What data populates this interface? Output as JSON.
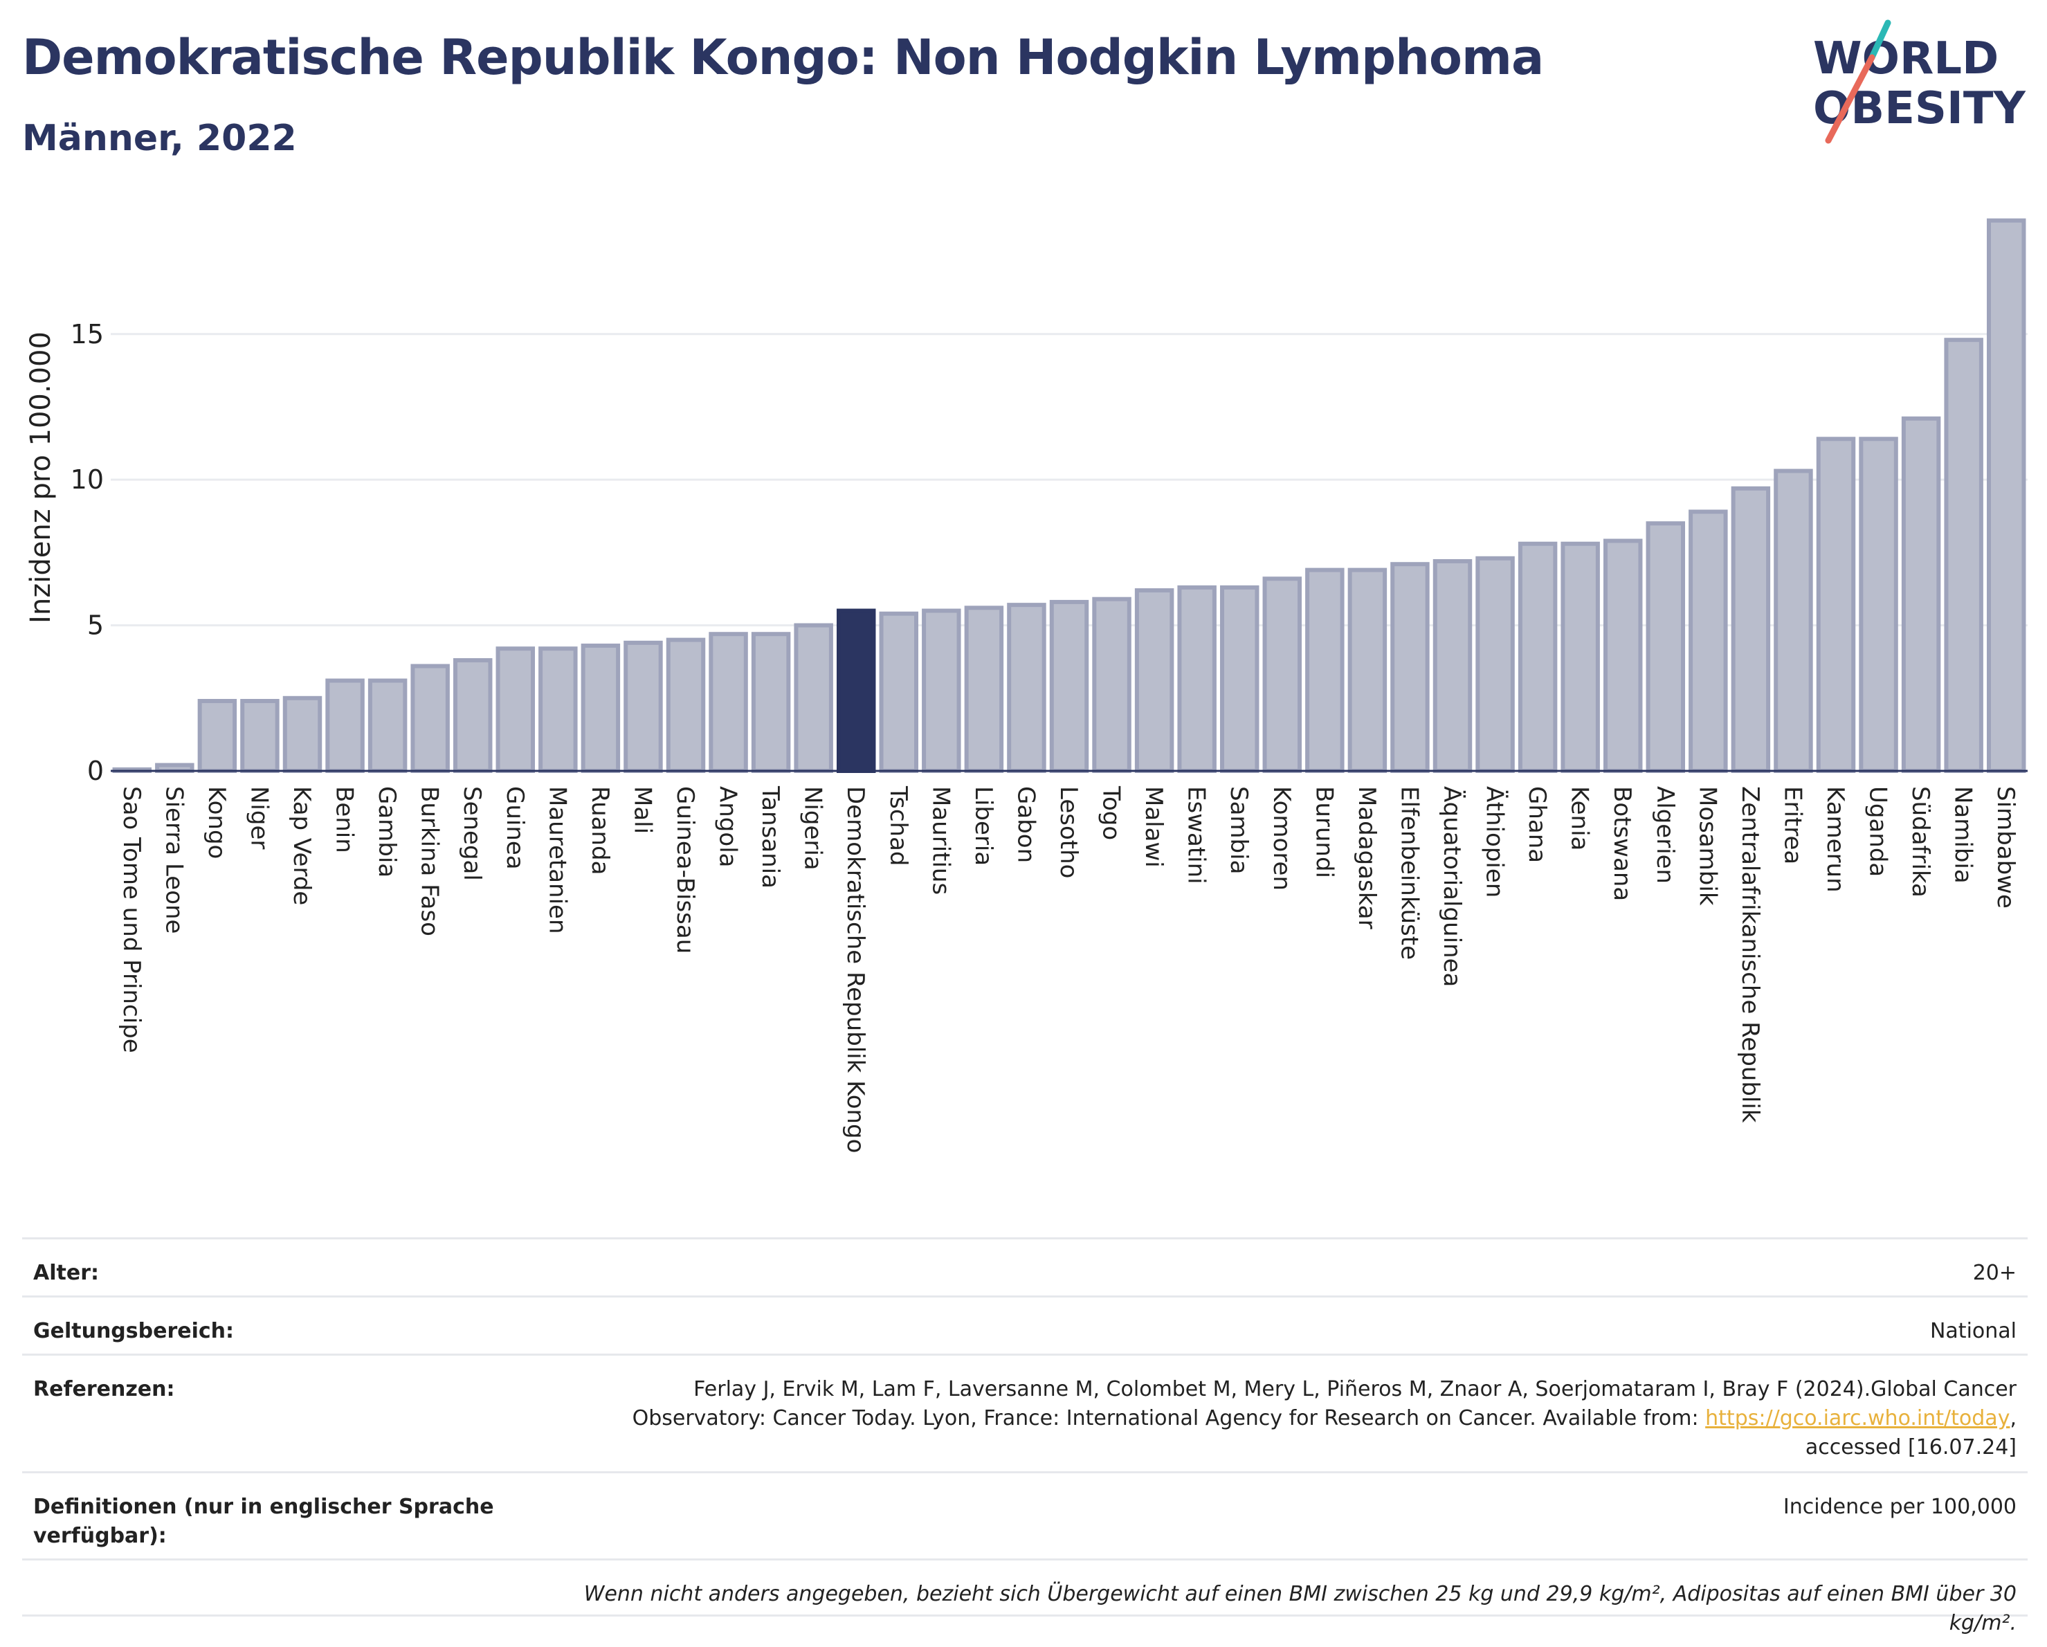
{
  "header": {
    "title": "Demokratische Republik Kongo: Non Hodgkin Lymphoma",
    "subtitle": "Männer, 2022"
  },
  "logo": {
    "line1": "WORLD",
    "line2": "OBESITY",
    "accent_teal": "#2bb8b5",
    "accent_red": "#e8695a"
  },
  "colors": {
    "bar_fill": "#b9bdcc",
    "bar_stroke": "#9ea3bb",
    "highlight": "#2b3561",
    "grid": "#e9ebef",
    "text": "#2b3561"
  },
  "chart_data": {
    "type": "bar",
    "title": "Demokratische Republik Kongo: Non Hodgkin Lymphoma",
    "subtitle": "Männer, 2022",
    "xlabel": "",
    "ylabel": "Inzidenz pro 100.000",
    "ylim": [
      0,
      19.2
    ],
    "yticks": [
      0,
      5,
      10,
      15
    ],
    "grid": true,
    "highlight": "Demokratische Republik Kongo",
    "categories": [
      "Sao Tome und Principe",
      "Sierra Leone",
      "Kongo",
      "Niger",
      "Kap Verde",
      "Benin",
      "Gambia",
      "Burkina Faso",
      "Senegal",
      "Guinea",
      "Mauretanien",
      "Ruanda",
      "Mali",
      "Guinea-Bissau",
      "Angola",
      "Tansania",
      "Nigeria",
      "Demokratische Republik Kongo",
      "Tschad",
      "Mauritius",
      "Liberia",
      "Gabon",
      "Lesotho",
      "Togo",
      "Malawi",
      "Eswatini",
      "Sambia",
      "Komoren",
      "Burundi",
      "Madagaskar",
      "Elfenbeinküste",
      "Äquatorialguinea",
      "Äthiopien",
      "Ghana",
      "Kenia",
      "Botswana",
      "Algerien",
      "Mosambik",
      "Zentralafrikanische Republik",
      "Eritrea",
      "Kamerun",
      "Uganda",
      "Südafrika",
      "Namibia",
      "Simbabwe"
    ],
    "values": [
      0.05,
      0.2,
      2.4,
      2.4,
      2.5,
      3.1,
      3.1,
      3.6,
      3.8,
      4.2,
      4.2,
      4.3,
      4.4,
      4.5,
      4.7,
      4.7,
      5.0,
      5.5,
      5.4,
      5.5,
      5.6,
      5.7,
      5.8,
      5.9,
      6.2,
      6.3,
      6.3,
      6.6,
      6.9,
      6.9,
      7.1,
      7.2,
      7.3,
      7.8,
      7.8,
      7.9,
      8.5,
      8.9,
      9.7,
      10.3,
      11.4,
      11.4,
      12.1,
      14.8,
      18.9
    ]
  },
  "meta": {
    "age_label": "Alter:",
    "age_value": "20+",
    "scope_label": "Geltungsbereich:",
    "scope_value": "National",
    "ref_label": "Referenzen:",
    "ref_text_1": "Ferlay J, Ervik M, Lam F, Laversanne M, Colombet M, Mery L, Piñeros M, Znaor A, Soerjomataram I, Bray F (2024).Global Cancer",
    "ref_text_2": "Observatory: Cancer Today. Lyon, France: International Agency for Research on Cancer. Available from: ",
    "ref_link": "https://gco.iarc.who.int/today",
    "ref_text_3": ",",
    "ref_text_4": "accessed [16.07.24]",
    "def_label": "Definitionen (nur in englischer Sprache verfügbar):",
    "def_value": "Incidence per 100,000",
    "note": "Wenn nicht anders angegeben, bezieht sich Übergewicht auf einen BMI zwischen 25 kg und 29,9 kg/m², Adipositas auf einen BMI über 30 kg/m²."
  }
}
